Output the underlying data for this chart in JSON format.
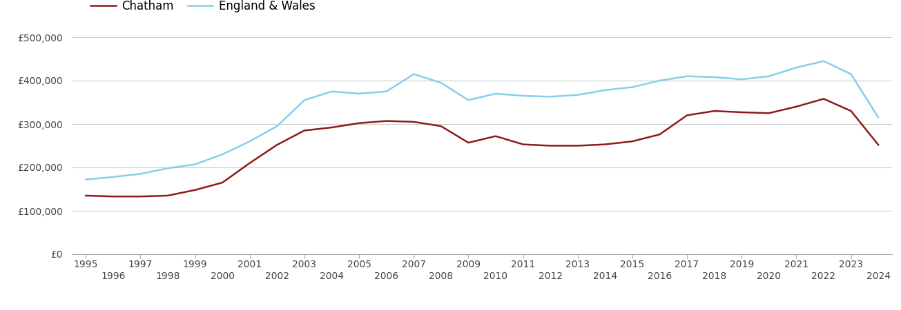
{
  "chatham_years": [
    1995,
    1996,
    1997,
    1998,
    1999,
    2000,
    2001,
    2002,
    2003,
    2004,
    2005,
    2006,
    2007,
    2008,
    2009,
    2010,
    2011,
    2012,
    2013,
    2014,
    2015,
    2016,
    2017,
    2018,
    2019,
    2020,
    2021,
    2022,
    2023,
    2024
  ],
  "chatham_values": [
    135000,
    133000,
    133000,
    135000,
    148000,
    165000,
    210000,
    252000,
    285000,
    292000,
    302000,
    307000,
    305000,
    295000,
    257000,
    272000,
    253000,
    250000,
    250000,
    253000,
    260000,
    276000,
    320000,
    330000,
    327000,
    325000,
    340000,
    358000,
    330000,
    252000
  ],
  "england_years": [
    1995,
    1996,
    1997,
    1998,
    1999,
    2000,
    2001,
    2002,
    2003,
    2004,
    2005,
    2006,
    2007,
    2008,
    2009,
    2010,
    2011,
    2012,
    2013,
    2014,
    2015,
    2016,
    2017,
    2018,
    2019,
    2020,
    2021,
    2022,
    2023,
    2024
  ],
  "england_values": [
    172000,
    178000,
    185000,
    198000,
    207000,
    230000,
    260000,
    295000,
    355000,
    375000,
    370000,
    375000,
    415000,
    395000,
    355000,
    370000,
    365000,
    363000,
    367000,
    378000,
    385000,
    400000,
    410000,
    408000,
    403000,
    410000,
    430000,
    445000,
    415000,
    315000
  ],
  "chatham_color": "#8B1A1A",
  "england_color": "#87CEEB",
  "chatham_label": "Chatham",
  "england_label": "England & Wales",
  "ylim": [
    0,
    500000
  ],
  "yticks": [
    0,
    100000,
    200000,
    300000,
    400000,
    500000
  ],
  "ytick_labels": [
    "£0",
    "£100,000",
    "£200,000",
    "£300,000",
    "£400,000",
    "£500,000"
  ],
  "odd_years": [
    1995,
    1997,
    1999,
    2001,
    2003,
    2005,
    2007,
    2009,
    2011,
    2013,
    2015,
    2017,
    2019,
    2021,
    2023
  ],
  "even_years": [
    1996,
    1998,
    2000,
    2002,
    2004,
    2006,
    2008,
    2010,
    2012,
    2014,
    2016,
    2018,
    2020,
    2022,
    2024
  ],
  "background_color": "#ffffff",
  "grid_color": "#cccccc",
  "line_width": 1.8,
  "tick_fontsize": 10,
  "legend_fontsize": 12
}
